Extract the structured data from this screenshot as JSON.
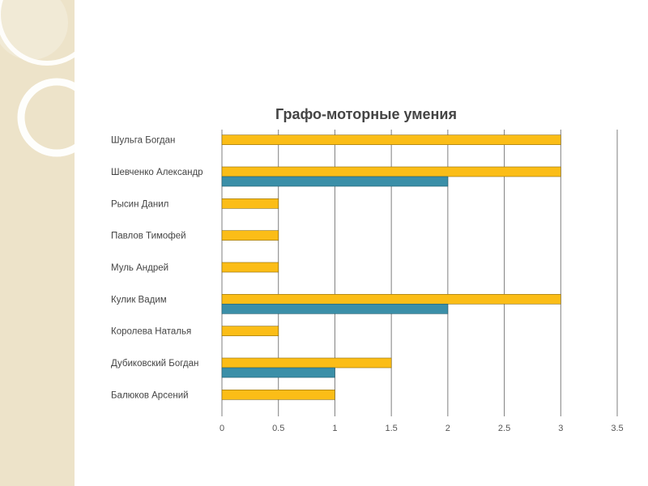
{
  "colors": {
    "series_a": "#fbbd17",
    "series_b": "#3b8fa8",
    "gridline": "#7f7f7f",
    "deco_band": "#ede3c9"
  },
  "chart_data": {
    "type": "bar",
    "orientation": "horizontal",
    "title": "Графо-моторные умения",
    "categories": [
      "Шульга Богдан",
      "Шевченко Александр",
      "Рысин Данил",
      "Павлов Тимофей",
      "Муль Андрей",
      "Кулик Вадим",
      "Королева Наталья",
      "Дубиковский Богдан",
      "Балюков Арсений"
    ],
    "series": [
      {
        "values": [
          3,
          3,
          0.5,
          0.5,
          0.5,
          3,
          0.5,
          1.5,
          1
        ]
      },
      {
        "values": [
          0,
          2,
          0,
          0,
          0,
          2,
          0,
          1,
          0
        ]
      }
    ],
    "xlim": [
      0,
      3.5
    ],
    "xticks": [
      "0",
      "0.5",
      "1",
      "1.5",
      "2",
      "2.5",
      "3",
      "3.5"
    ],
    "xlabel": "",
    "ylabel": "",
    "grid": true,
    "legend": "none"
  }
}
